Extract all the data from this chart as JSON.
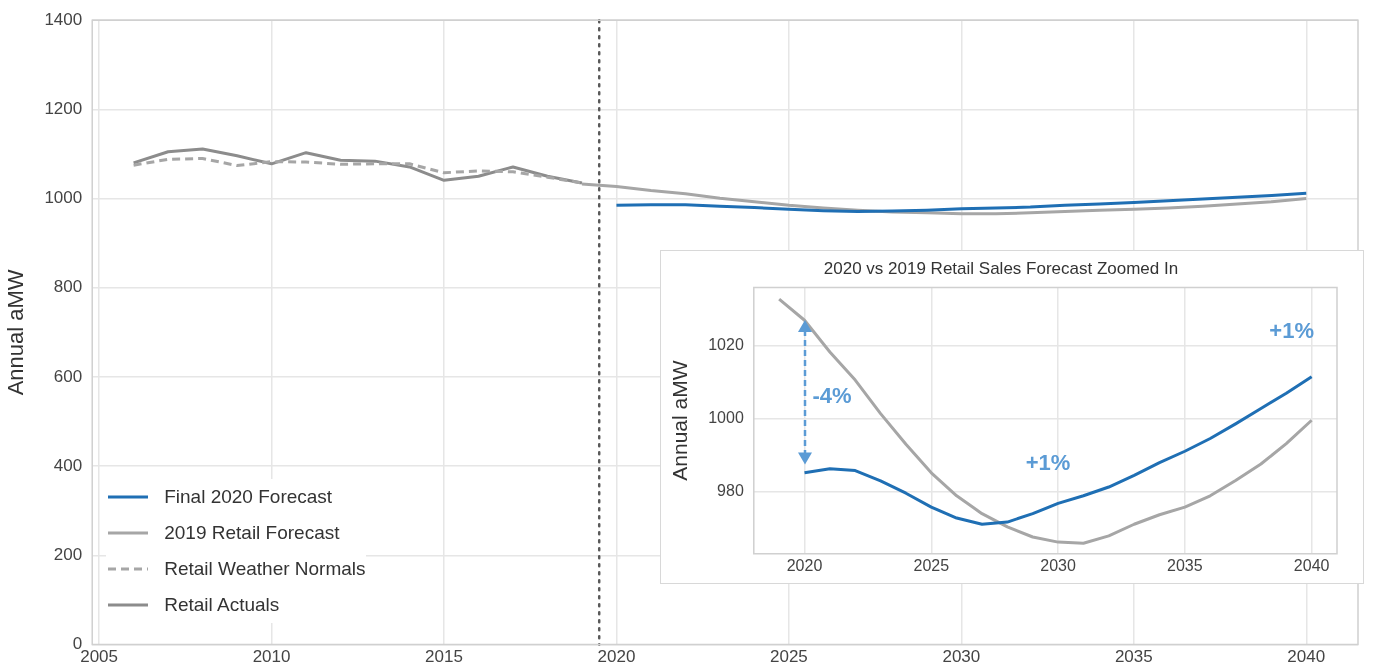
{
  "chart_data": [
    {
      "type": "line",
      "ylabel": "Annual aMW",
      "xlim": [
        2004.8,
        2041.5
      ],
      "xticks": [
        2005,
        2010,
        2015,
        2020,
        2025,
        2030,
        2035,
        2040
      ],
      "ylim": [
        0,
        1400
      ],
      "yticks": [
        0,
        200,
        400,
        600,
        800,
        1000,
        1200,
        1400
      ],
      "grid": true,
      "legend": "bottom left",
      "ref_lines": [
        {
          "axis": "x",
          "value": 2019.5,
          "color": "#595959",
          "line_style": "dotted"
        }
      ],
      "series": [
        {
          "name": "Final 2020 Forecast",
          "color": "#1f6fb4",
          "x": [
            2020,
            2021,
            2022,
            2023,
            2024,
            2025,
            2026,
            2027,
            2028,
            2029,
            2030,
            2031,
            2032,
            2033,
            2034,
            2035,
            2036,
            2037,
            2038,
            2039,
            2040
          ],
          "values": [
            985,
            986,
            986,
            983,
            980,
            976,
            973,
            971,
            972,
            974,
            977,
            979,
            981,
            985,
            988,
            991,
            995,
            999,
            1003,
            1007,
            1012
          ]
        },
        {
          "name": "2019 Retail Forecast",
          "color": "#a6a6a6",
          "x": [
            2019,
            2020,
            2021,
            2022,
            2023,
            2024,
            2025,
            2026,
            2027,
            2028,
            2029,
            2030,
            2031,
            2032,
            2033,
            2034,
            2035,
            2036,
            2037,
            2038,
            2039,
            2040
          ],
          "values": [
            1033,
            1027,
            1018,
            1011,
            1001,
            993,
            985,
            979,
            974,
            970,
            968,
            966,
            966,
            968,
            971,
            974,
            976,
            979,
            983,
            988,
            993,
            1000
          ]
        },
        {
          "name": "Retail Weather Normals",
          "color": "#a6a6a6",
          "line_style": "dashed",
          "x": [
            2006,
            2007,
            2008,
            2009,
            2010,
            2011,
            2012,
            2013,
            2014,
            2015,
            2016,
            2017,
            2018,
            2019
          ],
          "values": [
            1075,
            1088,
            1090,
            1074,
            1083,
            1082,
            1077,
            1078,
            1078,
            1058,
            1062,
            1060,
            1048,
            1035
          ]
        },
        {
          "name": "Retail Actuals",
          "color": "#8c8c8c",
          "x": [
            2006,
            2007,
            2008,
            2009,
            2010,
            2011,
            2012,
            2013,
            2014,
            2015,
            2016,
            2017,
            2018,
            2019
          ],
          "values": [
            1080,
            1105,
            1111,
            1096,
            1078,
            1103,
            1086,
            1084,
            1071,
            1041,
            1050,
            1071,
            1050,
            1035
          ]
        }
      ]
    },
    {
      "type": "line",
      "title": "2020 vs 2019 Retail Sales Forecast Zoomed In",
      "ylabel": "Annual aMW",
      "xlim": [
        2018,
        2041
      ],
      "xticks": [
        2020,
        2025,
        2030,
        2035,
        2040
      ],
      "ylim": [
        963,
        1036
      ],
      "yticks": [
        980,
        1000,
        1020
      ],
      "grid": true,
      "annotations": [
        "-4%",
        "+1%",
        "+1%"
      ],
      "series": [
        {
          "color": "#1f6fb4",
          "x": [
            2020,
            2021,
            2022,
            2023,
            2024,
            2025,
            2026,
            2027,
            2028,
            2029,
            2030,
            2031,
            2032,
            2033,
            2034,
            2035,
            2036,
            2037,
            2038,
            2039,
            2040
          ],
          "values": [
            985.2,
            986.3,
            985.8,
            983,
            979.6,
            975.8,
            972.8,
            971.1,
            971.7,
            974,
            976.8,
            978.9,
            981.3,
            984.5,
            988,
            991.1,
            994.6,
            998.6,
            1002.8,
            1007,
            1011.5
          ]
        },
        {
          "color": "#a6a6a6",
          "x": [
            2019,
            2020,
            2021,
            2022,
            2023,
            2024,
            2025,
            2026,
            2027,
            2028,
            2029,
            2030,
            2031,
            2032,
            2033,
            2034,
            2035,
            2036,
            2037,
            2038,
            2039,
            2040
          ],
          "values": [
            1032.8,
            1027,
            1018.3,
            1010.6,
            1001.4,
            993,
            985.2,
            978.9,
            974,
            970.4,
            967.6,
            966.2,
            965.9,
            967.9,
            971.1,
            973.7,
            975.8,
            978.9,
            983.1,
            987.6,
            993.2,
            999.6
          ]
        }
      ]
    }
  ]
}
